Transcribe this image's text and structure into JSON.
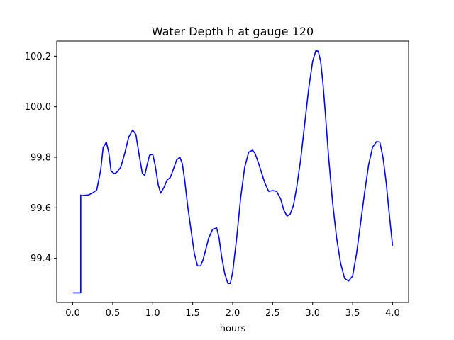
{
  "chart_data": {
    "type": "line",
    "title": "Water Depth h at gauge 120",
    "xlabel": "hours",
    "ylabel": "",
    "xlim": [
      -0.2,
      4.2
    ],
    "ylim": [
      99.225,
      100.26
    ],
    "xticks": [
      0.0,
      0.5,
      1.0,
      1.5,
      2.0,
      2.5,
      3.0,
      3.5,
      4.0
    ],
    "xtick_labels": [
      "0.0",
      "0.5",
      "1.0",
      "1.5",
      "2.0",
      "2.5",
      "3.0",
      "3.5",
      "4.0"
    ],
    "yticks": [
      99.4,
      99.6,
      99.8,
      100.0,
      100.2
    ],
    "ytick_labels": [
      "99.4",
      "99.6",
      "99.8",
      "100.0",
      "100.2"
    ],
    "grid": false,
    "legend": "none",
    "series": [
      {
        "color": "#0000ff",
        "x": [
          0.0,
          0.1,
          0.1,
          0.11,
          0.2,
          0.25,
          0.3,
          0.35,
          0.38,
          0.42,
          0.45,
          0.48,
          0.52,
          0.55,
          0.6,
          0.65,
          0.7,
          0.75,
          0.79,
          0.83,
          0.87,
          0.9,
          0.93,
          0.96,
          1.0,
          1.03,
          1.07,
          1.1,
          1.14,
          1.18,
          1.22,
          1.25,
          1.3,
          1.34,
          1.37,
          1.4,
          1.44,
          1.48,
          1.52,
          1.56,
          1.6,
          1.63,
          1.66,
          1.7,
          1.75,
          1.8,
          1.83,
          1.86,
          1.9,
          1.94,
          1.97,
          2.0,
          2.05,
          2.1,
          2.15,
          2.2,
          2.25,
          2.28,
          2.32,
          2.36,
          2.4,
          2.45,
          2.5,
          2.55,
          2.6,
          2.64,
          2.68,
          2.72,
          2.76,
          2.8,
          2.85,
          2.9,
          2.95,
          3.0,
          3.04,
          3.07,
          3.1,
          3.13,
          3.16,
          3.2,
          3.25,
          3.3,
          3.35,
          3.4,
          3.45,
          3.5,
          3.55,
          3.6,
          3.65,
          3.7,
          3.75,
          3.8,
          3.84,
          3.88,
          3.92,
          3.96,
          4.0
        ],
        "y": [
          99.263,
          99.263,
          99.65,
          99.648,
          99.651,
          99.659,
          99.67,
          99.75,
          99.838,
          99.86,
          99.82,
          99.745,
          99.735,
          99.74,
          99.76,
          99.815,
          99.88,
          99.908,
          99.89,
          99.81,
          99.737,
          99.728,
          99.77,
          99.808,
          99.812,
          99.77,
          99.69,
          99.658,
          99.68,
          99.71,
          99.72,
          99.745,
          99.79,
          99.8,
          99.775,
          99.71,
          99.6,
          99.51,
          99.42,
          99.37,
          99.37,
          99.395,
          99.43,
          99.48,
          99.515,
          99.52,
          99.48,
          99.41,
          99.34,
          99.3,
          99.3,
          99.345,
          99.48,
          99.64,
          99.76,
          99.82,
          99.828,
          99.815,
          99.78,
          99.74,
          99.7,
          99.665,
          99.668,
          99.665,
          99.635,
          99.59,
          99.567,
          99.575,
          99.61,
          99.68,
          99.79,
          99.93,
          100.07,
          100.18,
          100.222,
          100.22,
          100.18,
          100.09,
          99.97,
          99.8,
          99.62,
          99.48,
          99.38,
          99.32,
          99.31,
          99.33,
          99.42,
          99.54,
          99.66,
          99.77,
          99.84,
          99.862,
          99.86,
          99.8,
          99.7,
          99.57,
          99.45
        ]
      }
    ]
  }
}
